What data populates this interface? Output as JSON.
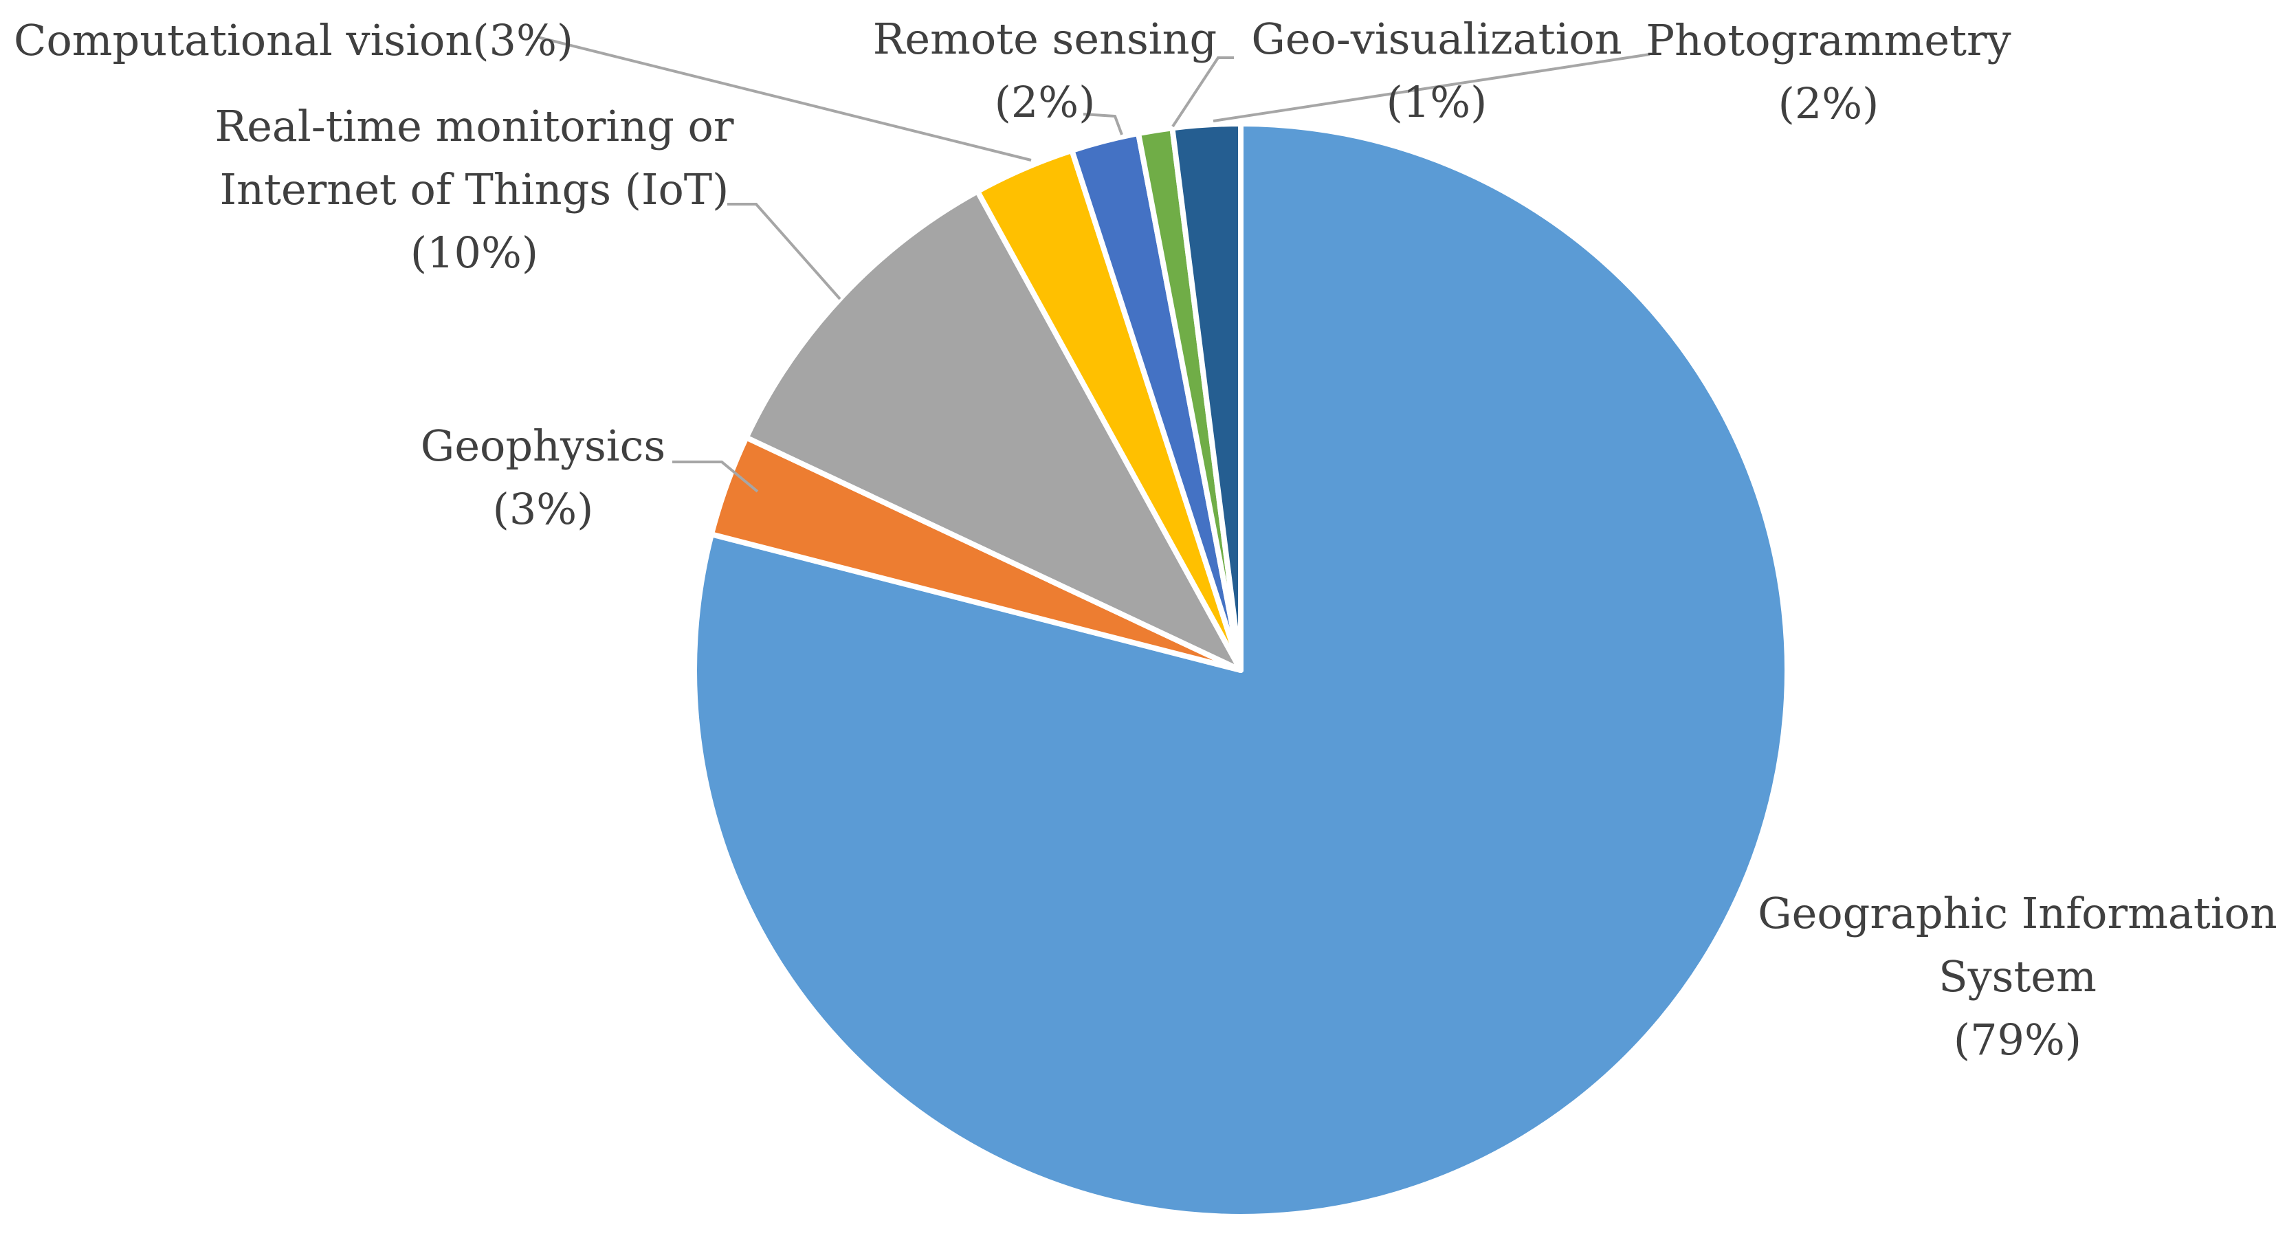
{
  "chart_data": {
    "type": "pie",
    "start_angle_deg": 0,
    "direction": "clockwise",
    "legend": "none",
    "slices": [
      {
        "name": "Geographic Information System",
        "value": 79,
        "color": "#5b9bd5",
        "label_lines": [
          "Geographic Information",
          "System",
          "(79%)"
        ]
      },
      {
        "name": "Geophysics",
        "value": 3,
        "color": "#ed7d31",
        "label_lines": [
          "Geophysics",
          "(3%)"
        ]
      },
      {
        "name": "Real-time monitoring or Internet of Things (IoT)",
        "value": 10,
        "color": "#a5a5a5",
        "label_lines": [
          "Real-time monitoring or",
          "Internet of Things (IoT)",
          "(10%)"
        ]
      },
      {
        "name": "Computational vision",
        "value": 3,
        "color": "#ffc000",
        "label_lines": [
          "Computational vision(3%)"
        ]
      },
      {
        "name": "Remote sensing",
        "value": 2,
        "color": "#4472c4",
        "label_lines": [
          "Remote sensing",
          "(2%)"
        ]
      },
      {
        "name": "Geo-visualization",
        "value": 1,
        "color": "#70ad47",
        "label_lines": [
          "Geo-visualization",
          "(1%)"
        ]
      },
      {
        "name": "Photogrammetry",
        "value": 2,
        "color": "#255e91",
        "label_lines": [
          "Photogrammetry",
          "(2%)"
        ]
      }
    ]
  }
}
